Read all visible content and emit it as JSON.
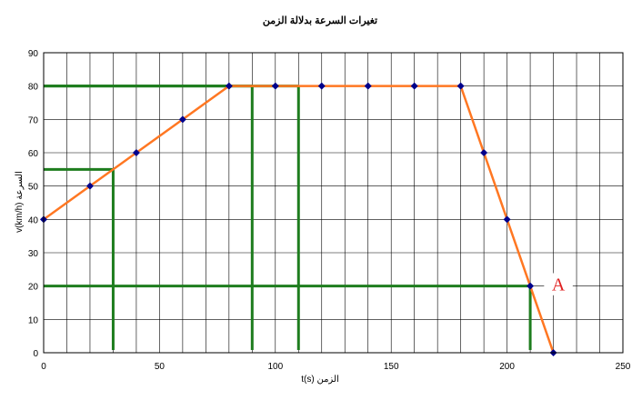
{
  "chart_data": {
    "type": "line",
    "title": "تغيرات السرعة بدلالة الزمن",
    "xlabel": "t(s)  الزمن",
    "ylabel": "v(km/h) السرعة",
    "xlim": [
      0,
      250
    ],
    "ylim": [
      0,
      90
    ],
    "xticks": [
      0,
      50,
      100,
      150,
      200,
      250
    ],
    "yticks": [
      0,
      10,
      20,
      30,
      40,
      50,
      60,
      70,
      80,
      90
    ],
    "grid": true,
    "series": [
      {
        "color": "#ff7722",
        "marker_color": "#00008b",
        "x": [
          0,
          20,
          40,
          60,
          80,
          100,
          120,
          140,
          160,
          180,
          190,
          200,
          210,
          220
        ],
        "y": [
          40,
          50,
          60,
          70,
          80,
          80,
          80,
          80,
          80,
          80,
          60,
          40,
          20,
          0
        ]
      }
    ],
    "guides": [
      {
        "x": 30,
        "y": 55
      },
      {
        "x": 90,
        "y": 80
      },
      {
        "x": 110,
        "y": 80
      },
      {
        "x": 210,
        "y": 20
      }
    ],
    "guide_color": "#1e7d1e",
    "annotation": {
      "label": "A",
      "x": 210,
      "y": 20,
      "color": "#e02020"
    }
  }
}
